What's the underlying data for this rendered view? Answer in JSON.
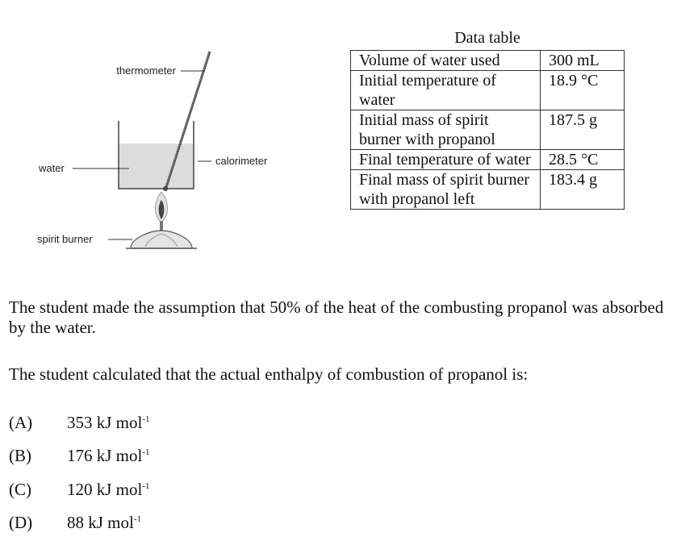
{
  "diagram": {
    "labels": {
      "thermometer": "thermometer",
      "water": "water",
      "calorimeter": "calorimeter",
      "spirit_burner": "spirit burner"
    }
  },
  "table": {
    "caption": "Data table",
    "rows": [
      {
        "label": "Volume of water used",
        "value": "300 mL"
      },
      {
        "label": "Initial temperature of water",
        "value": "18.9 °C"
      },
      {
        "label": "Initial mass of spirit burner with propanol",
        "value": "187.5 g"
      },
      {
        "label": "Final temperature of water",
        "value": "28.5 °C"
      },
      {
        "label": "Final mass of spirit burner with propanol left",
        "value": "183.4 g"
      }
    ]
  },
  "question": {
    "assumption": "The student made the assumption that 50% of the heat of the combusting propanol was absorbed by the water.",
    "prompt": "The student calculated that the actual enthalpy of combustion of propanol is:",
    "options": [
      {
        "label": "(A)",
        "value": "353 kJ mol",
        "exp": "-1"
      },
      {
        "label": "(B)",
        "value": "176 kJ mol",
        "exp": "-1"
      },
      {
        "label": "(C)",
        "value": "120 kJ mol",
        "exp": "-1"
      },
      {
        "label": "(D)",
        "value": "88 kJ mol",
        "exp": "-1"
      }
    ]
  }
}
